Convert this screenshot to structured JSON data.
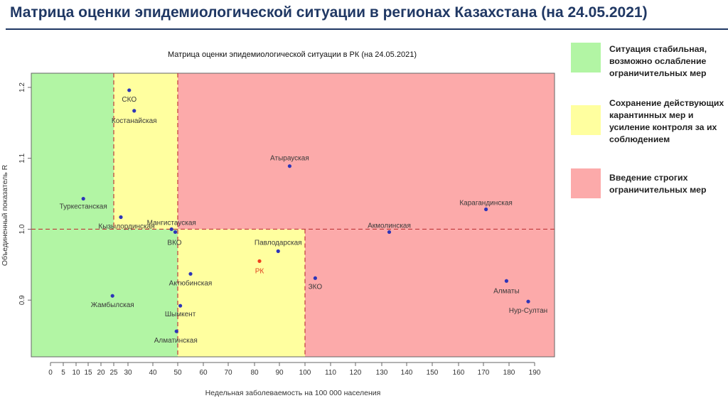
{
  "slide": {
    "title": "Матрица оценки эпидемиологической ситуации в регионах Казахстана (на 24.05.2021)"
  },
  "legend": [
    {
      "color": "#b2f5a4",
      "text_lines": [
        "Ситуация стабильная,",
        "возможно ослабление",
        "ограничительных мер"
      ]
    },
    {
      "color": "#ffff9f",
      "text_lines": [
        "Сохранение действующих",
        "карантинных мер и",
        "усиление контроля за их",
        "соблюдением"
      ]
    },
    {
      "color": "#fcaaaa",
      "text_lines": [
        "Введение строгих",
        "ограничительных мер"
      ]
    }
  ],
  "zone_colors": {
    "green": "#b2f5a4",
    "yellow": "#ffff9f",
    "red": "#fcaaaa",
    "rk_point": "#f0401e",
    "point": "#2d35b8"
  },
  "chart_data": {
    "type": "scatter",
    "title": "Матрица оценки эпидемиологической ситуации в РК (на 24.05.2021)",
    "xlabel": "Недельная заболеваемость на 100 000 населения",
    "ylabel": "Объединенный показатель R",
    "xlim": [
      -15,
      200
    ],
    "ylim": [
      0.82,
      1.22
    ],
    "xticks": [
      0,
      5,
      10,
      15,
      20,
      25,
      30,
      40,
      50,
      60,
      70,
      80,
      90,
      100,
      110,
      120,
      130,
      140,
      150,
      160,
      170,
      180,
      190
    ],
    "xtick_labels": [
      "0",
      "5",
      "10",
      "15",
      "20",
      "25",
      "30",
      "40",
      "50",
      "60",
      "70",
      "80",
      "90",
      "100",
      "110",
      "120",
      "130",
      "140",
      "150",
      "160",
      "170",
      "180",
      "190"
    ],
    "yticks": [
      0.9,
      1.0,
      1.1,
      1.2
    ],
    "ytick_labels": [
      "0.9",
      "1.0",
      "1.1",
      "1.2"
    ],
    "thresholds": {
      "x": [
        25,
        50,
        100
      ],
      "y": 1.0
    },
    "zones": [
      {
        "x": [
          -15,
          25
        ],
        "y": [
          1.0,
          1.22
        ],
        "color": "green"
      },
      {
        "x": [
          25,
          50
        ],
        "y": [
          1.0,
          1.22
        ],
        "color": "yellow"
      },
      {
        "x": [
          50,
          200
        ],
        "y": [
          1.0,
          1.22
        ],
        "color": "red"
      },
      {
        "x": [
          -15,
          50
        ],
        "y": [
          0.82,
          1.0
        ],
        "color": "green"
      },
      {
        "x": [
          50,
          100
        ],
        "y": [
          0.82,
          1.0
        ],
        "color": "yellow"
      },
      {
        "x": [
          100,
          200
        ],
        "y": [
          0.82,
          1.0
        ],
        "color": "red"
      }
    ],
    "points": [
      {
        "label": "СКО",
        "x": 30.5,
        "y": 1.196
      },
      {
        "label": "Костанайская",
        "x": 32.5,
        "y": 1.167
      },
      {
        "label": "Атырауская",
        "x": 94,
        "y": 1.089
      },
      {
        "label": "Туркестанская",
        "x": 13,
        "y": 1.043
      },
      {
        "label": "Кызылординская",
        "x": 27.5,
        "y": 1.017
      },
      {
        "label": "Мангистауская",
        "x": 47.5,
        "y": 1.0
      },
      {
        "label": "ВКО",
        "x": 49,
        "y": 0.996
      },
      {
        "label": "Карагандинская",
        "x": 171,
        "y": 1.028
      },
      {
        "label": "Акмолинская",
        "x": 133,
        "y": 0.996
      },
      {
        "label": "Павлодарская",
        "x": 89.5,
        "y": 0.969
      },
      {
        "label": "РК",
        "x": 82,
        "y": 0.955,
        "highlight": true
      },
      {
        "label": "Актюбинская",
        "x": 55,
        "y": 0.937
      },
      {
        "label": "ЗКО",
        "x": 104,
        "y": 0.931
      },
      {
        "label": "Жамбылская",
        "x": 24.5,
        "y": 0.906
      },
      {
        "label": "Шымкент",
        "x": 51,
        "y": 0.892
      },
      {
        "label": "Алматинская",
        "x": 49.5,
        "y": 0.856
      },
      {
        "label": "Алматы",
        "x": 179,
        "y": 0.927
      },
      {
        "label": "Нур-Султан",
        "x": 187.5,
        "y": 0.898
      }
    ]
  }
}
